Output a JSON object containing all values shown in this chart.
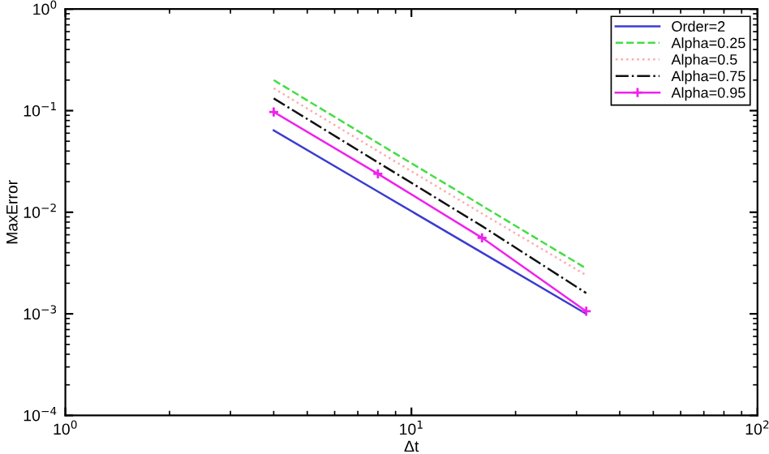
{
  "chart_data": {
    "type": "line",
    "xlabel": "Δt",
    "ylabel": "MaxError",
    "log": "xy",
    "x": [
      4,
      8,
      16,
      32
    ],
    "xlim": [
      1,
      100
    ],
    "ylim": [
      0.0001,
      1
    ],
    "xticks": [
      {
        "value": 1,
        "label": "10$^{0}$"
      },
      {
        "value": 10,
        "label": "10$^{1}$"
      },
      {
        "value": 100,
        "label": "10$^{2}$"
      }
    ],
    "yticks": [
      {
        "value": 0.0001,
        "label": "10$^{−4}$"
      },
      {
        "value": 0.001,
        "label": "10$^{−3}$"
      },
      {
        "value": 0.01,
        "label": "10$^{−2}$"
      },
      {
        "value": 0.1,
        "label": "10$^{−1}$"
      },
      {
        "value": 1,
        "label": "10$^{0}$"
      }
    ],
    "grid": false,
    "legend": "top right",
    "series": [
      {
        "name": "Order=2",
        "color": "#3b3bd0",
        "line_style": "solid",
        "values": [
          0.064,
          0.016,
          0.004,
          0.001
        ]
      },
      {
        "name": "Alpha=0.25",
        "color": "#44dd44",
        "line_style": "dashed",
        "values": [
          0.2,
          0.048,
          0.0116,
          0.0028
        ]
      },
      {
        "name": "Alpha=0.5",
        "color": "#ffaaaa",
        "line_style": "dotted",
        "values": [
          0.166,
          0.04,
          0.0097,
          0.0024
        ]
      },
      {
        "name": "Alpha=0.75",
        "color": "#111111",
        "line_style": "dashdot",
        "values": [
          0.132,
          0.031,
          0.0073,
          0.0016
        ]
      },
      {
        "name": "Alpha=0.95",
        "color": "#ee22ee",
        "line_style": "solid",
        "marker": "cross",
        "values": [
          0.097,
          0.0239,
          0.0056,
          0.00106
        ]
      }
    ]
  }
}
